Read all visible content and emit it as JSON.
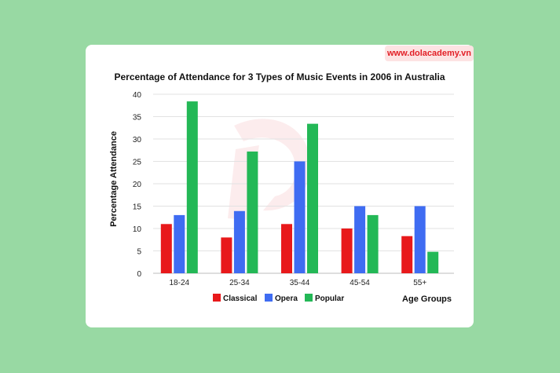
{
  "brand": {
    "url_text": "www.dolacademy.vn"
  },
  "chart_data": {
    "type": "bar",
    "title": "Percentage of Attendance for 3 Types of Music Events in 2006 in Australia",
    "xlabel": "Age Groups",
    "ylabel": "Percentage Attendance",
    "categories": [
      "18-24",
      "25-34",
      "35-44",
      "45-54",
      "55+"
    ],
    "ylim": [
      0,
      40
    ],
    "yticks": [
      0,
      5,
      10,
      15,
      20,
      25,
      30,
      35,
      40
    ],
    "grid": true,
    "legend_position": "bottom",
    "series": [
      {
        "name": "Classical",
        "color": "#e8191b",
        "values": [
          11,
          8,
          11,
          10,
          8.3
        ]
      },
      {
        "name": "Opera",
        "color": "#3f6cf2",
        "values": [
          13,
          13.9,
          25,
          15,
          15
        ]
      },
      {
        "name": "Popular",
        "color": "#23b856",
        "values": [
          38.4,
          27.2,
          33.4,
          13,
          4.8
        ]
      }
    ]
  }
}
